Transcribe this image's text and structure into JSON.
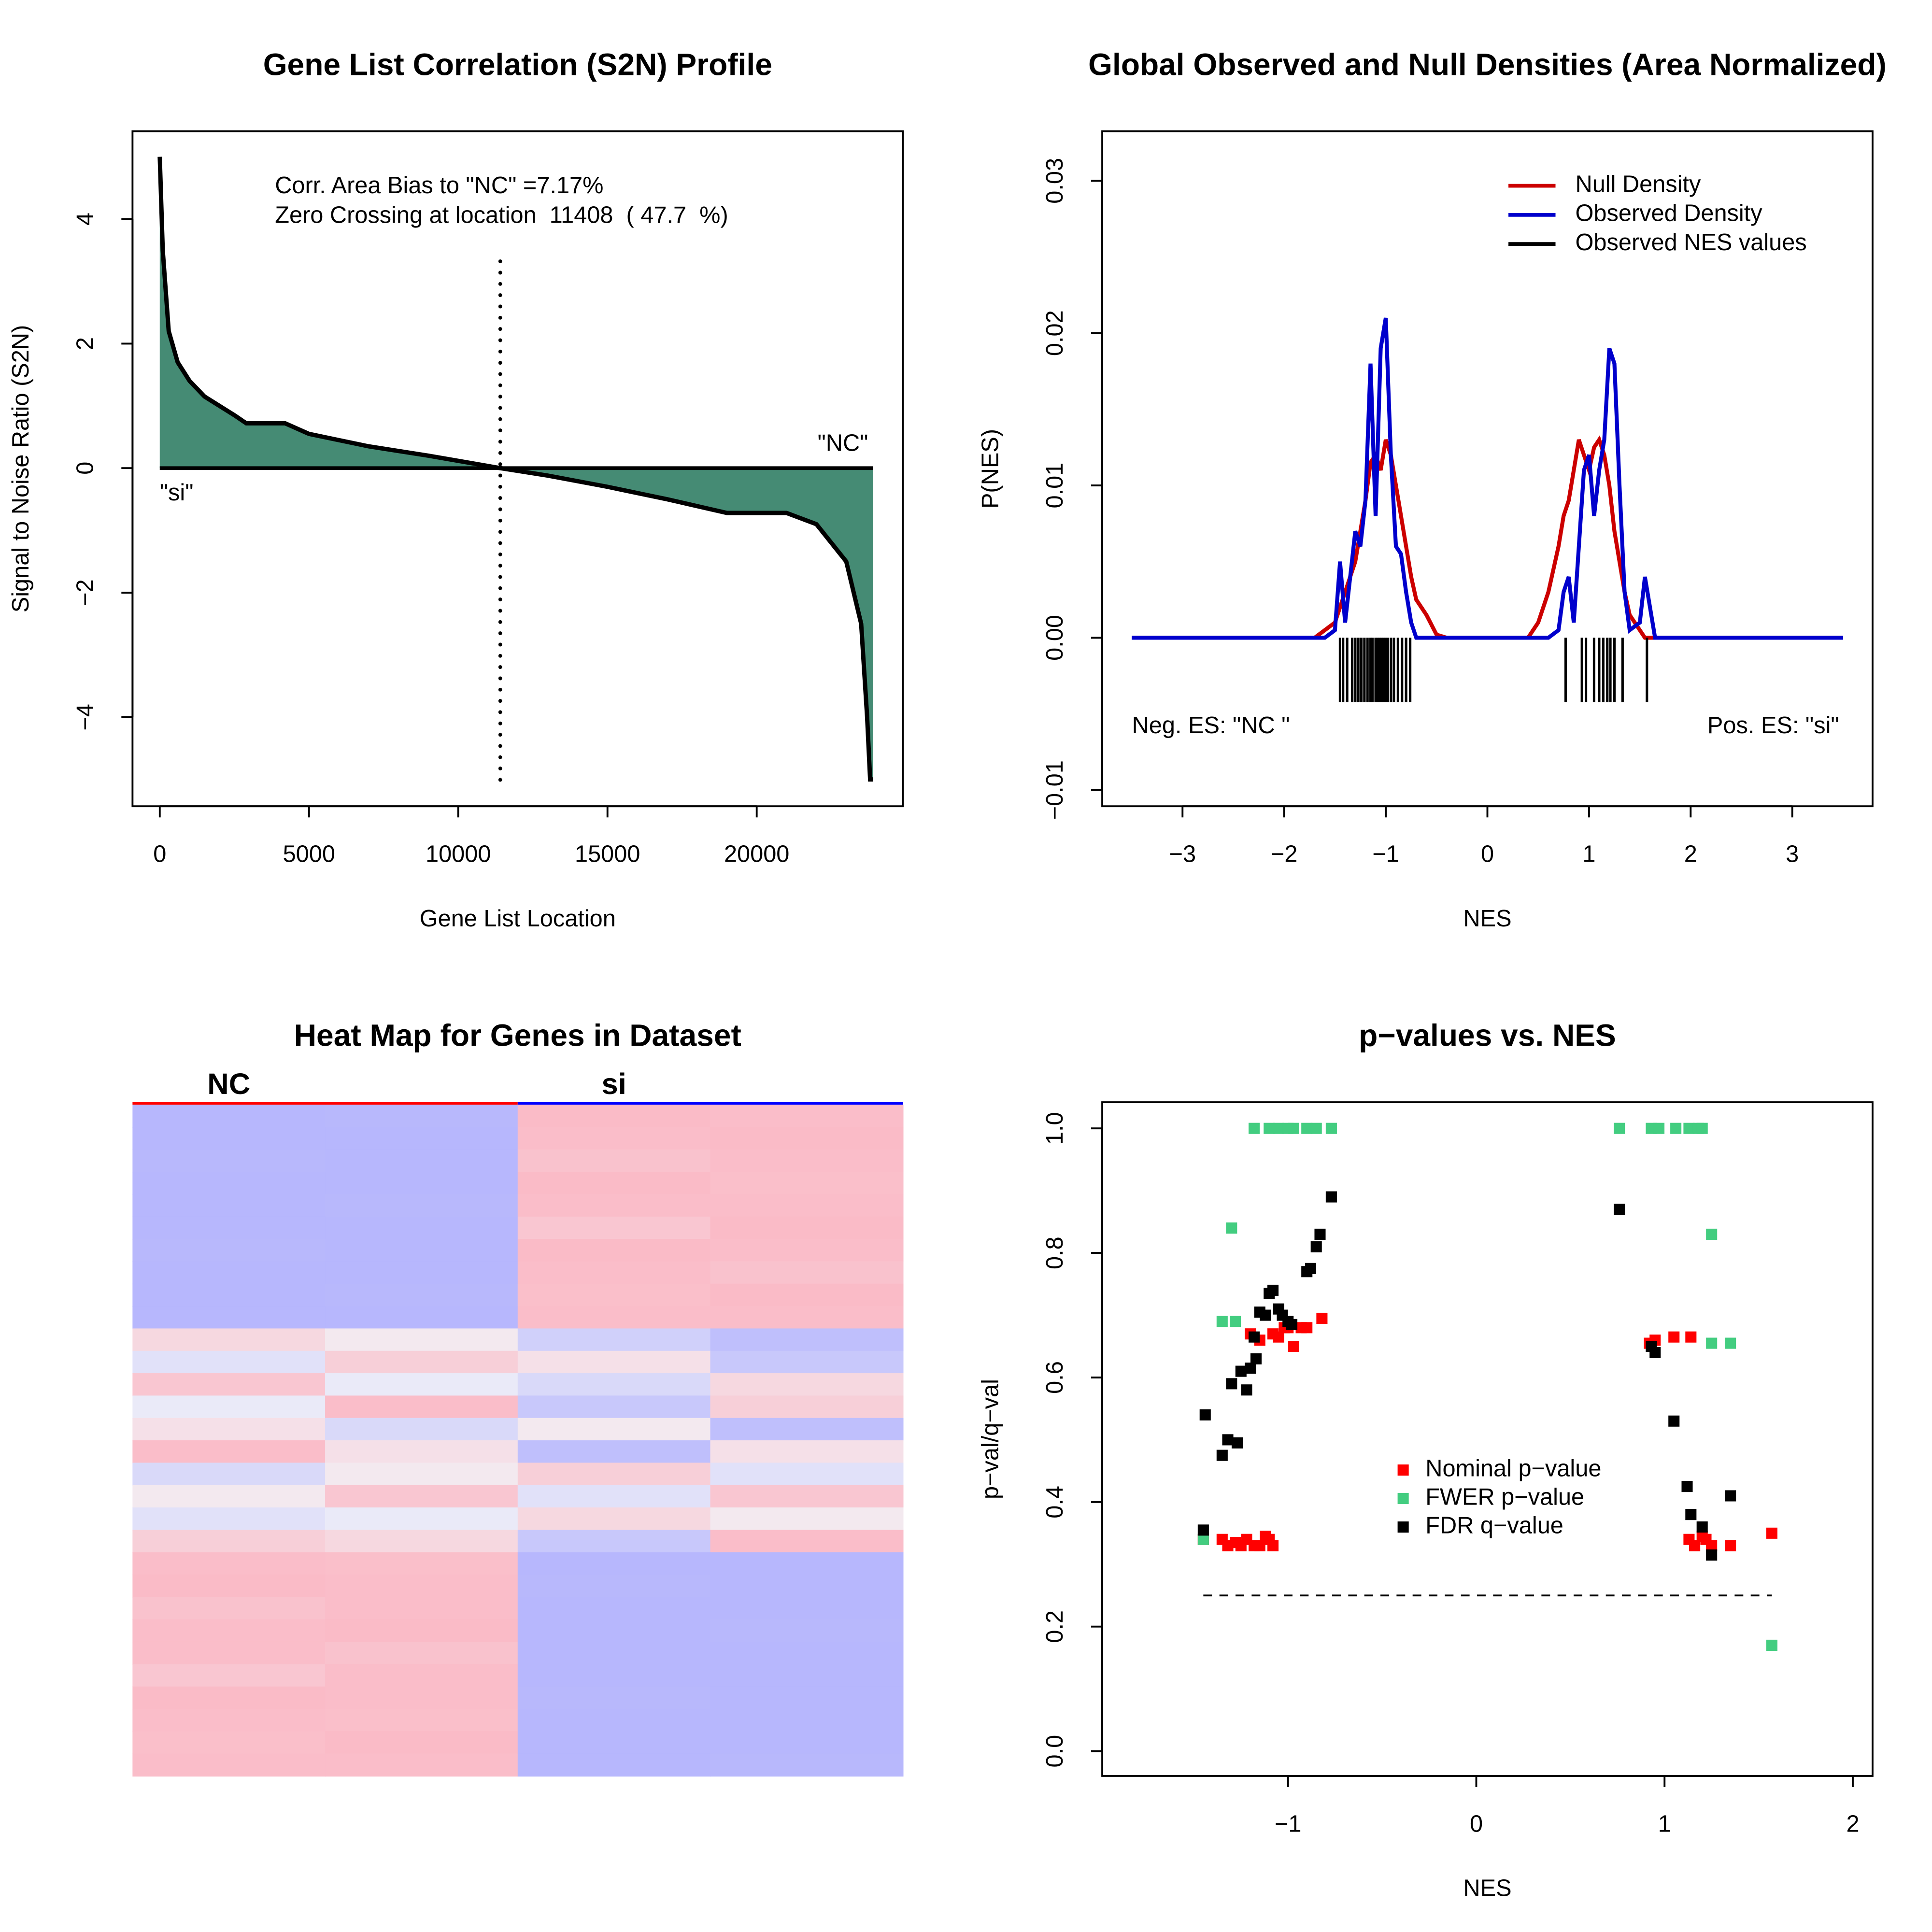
{
  "chart_data": [
    {
      "type": "area",
      "title": "Gene List Correlation (S2N) Profile",
      "xlabel": "Gene List Location",
      "ylabel": "Signal to Noise Ratio (S2N)",
      "x": [
        0,
        100,
        300,
        600,
        1000,
        1500,
        2000,
        2500,
        2900,
        4200,
        5000,
        7000,
        9000,
        11408,
        13000,
        15000,
        17000,
        19000,
        21000,
        22000,
        23000,
        23500,
        23700,
        23800,
        23900
      ],
      "values": [
        5,
        3.5,
        2.2,
        1.7,
        1.4,
        1.15,
        1,
        0.85,
        0.72,
        0.72,
        0.55,
        0.35,
        0.2,
        0,
        -0.12,
        -0.3,
        -0.5,
        -0.72,
        -0.72,
        -0.9,
        -1.5,
        -2.5,
        -4,
        -5,
        -5
      ],
      "color": "#458b74",
      "line_color": "#000000",
      "xlim": [
        -913,
        24896
      ],
      "ylim": [
        -5.43,
        5.41
      ],
      "xticks": [
        0,
        5000,
        10000,
        15000,
        20000
      ],
      "yticks": [
        {
          "value": -4,
          "label": "−4"
        },
        {
          "value": -2,
          "label": "−2"
        },
        0,
        2,
        4
      ],
      "annotations": [
        "Corr. Area Bias to \"NC\" =7.17%",
        "Zero Crossing at location  11408  ( 47.7  %)"
      ],
      "zero_crossing": 11408,
      "end_labels": {
        "left": "\"si\"",
        "right": "\"NC\""
      }
    },
    {
      "type": "line",
      "title": "Global Observed and Null Densities (Area Normalized)",
      "xlabel": "NES",
      "ylabel": "P(NES)",
      "x": [
        -3.5,
        -1.7,
        -1.6,
        -1.5,
        -1.45,
        -1.4,
        -1.35,
        -1.3,
        -1.25,
        -1.2,
        -1.15,
        -1.1,
        -1.05,
        -1.0,
        -0.95,
        -0.9,
        -0.85,
        -0.8,
        -0.75,
        -0.7,
        -0.6,
        -0.5,
        -0.4,
        0.4,
        0.5,
        0.6,
        0.7,
        0.75,
        0.8,
        0.85,
        0.9,
        0.95,
        1.0,
        1.05,
        1.1,
        1.15,
        1.2,
        1.25,
        1.3,
        1.35,
        1.4,
        1.5,
        1.55,
        1.6,
        1.65,
        1.7,
        3.5
      ],
      "series": [
        {
          "name": "Null Density",
          "color": "#cc0000",
          "values": [
            0,
            0,
            0.0005,
            0.001,
            0.002,
            0.003,
            0.004,
            0.005,
            0.007,
            0.009,
            0.0115,
            0.012,
            0.011,
            0.013,
            0.012,
            0.01,
            0.008,
            0.006,
            0.004,
            0.0025,
            0.0015,
            0.0002,
            0,
            0,
            0.001,
            0.003,
            0.006,
            0.008,
            0.009,
            0.011,
            0.013,
            0.012,
            0.011,
            0.0125,
            0.013,
            0.012,
            0.01,
            0.007,
            0.005,
            0.003,
            0.0015,
            0.0005,
            0,
            0,
            0,
            0,
            0
          ]
        },
        {
          "name": "Observed Density",
          "color": "#0000cc",
          "values": [
            0,
            0,
            0,
            0.0005,
            0.005,
            0.001,
            0.004,
            0.007,
            0.006,
            0.009,
            0.018,
            0.008,
            0.019,
            0.021,
            0.012,
            0.006,
            0.0055,
            0.003,
            0.001,
            0,
            0,
            0,
            0,
            0,
            0,
            0,
            0.0005,
            0.003,
            0.004,
            0.001,
            0.006,
            0.011,
            0.012,
            0.008,
            0.011,
            0.013,
            0.019,
            0.018,
            0.01,
            0.003,
            0.0005,
            0.001,
            0.004,
            0.002,
            0,
            0,
            0
          ]
        }
      ],
      "rug": {
        "name": "Observed NES values",
        "color": "#000000",
        "values": [
          -1.45,
          -1.42,
          -1.38,
          -1.33,
          -1.3,
          -1.27,
          -1.24,
          -1.21,
          -1.18,
          -1.15,
          -1.13,
          -1.1,
          -1.08,
          -1.06,
          -1.04,
          -1.02,
          -1.0,
          -0.98,
          -0.95,
          -0.92,
          -0.88,
          -0.84,
          -0.8,
          -0.76,
          0.77,
          0.93,
          0.97,
          1.05,
          1.1,
          1.14,
          1.18,
          1.21,
          1.25,
          1.33,
          1.57
        ]
      },
      "xlim": [
        -3.79,
        3.79
      ],
      "ylim": [
        -0.01106,
        0.03325
      ],
      "xticks": [
        {
          "value": -3,
          "label": "−3"
        },
        {
          "value": -2,
          "label": "−2"
        },
        {
          "value": -1,
          "label": "−1"
        },
        0,
        1,
        2,
        3
      ],
      "yticks": [
        {
          "value": -0.01,
          "label": "−0.01"
        },
        {
          "value": 0,
          "label": "0.00"
        },
        0.01,
        0.02,
        0.03
      ],
      "annotations": [
        "Neg. ES: \"NC \"",
        "Pos. ES: \"si\""
      ],
      "legend": "top-right"
    },
    {
      "type": "heatmap",
      "title": "Heat Map for Genes in Dataset",
      "groups": [
        {
          "name": "NC",
          "color": "#ff0000"
        },
        {
          "name": "si",
          "color": "#0000ff"
        }
      ],
      "values": [
        [
          -0.7,
          -0.68,
          0.62,
          0.6
        ],
        [
          -0.7,
          -0.7,
          0.6,
          0.62
        ],
        [
          -0.68,
          -0.7,
          0.55,
          0.6
        ],
        [
          -0.7,
          -0.7,
          0.62,
          0.58
        ],
        [
          -0.7,
          -0.68,
          0.6,
          0.6
        ],
        [
          -0.7,
          -0.7,
          0.5,
          0.62
        ],
        [
          -0.68,
          -0.7,
          0.62,
          0.6
        ],
        [
          -0.7,
          -0.7,
          0.6,
          0.55
        ],
        [
          -0.7,
          -0.68,
          0.58,
          0.62
        ],
        [
          -0.7,
          -0.7,
          0.6,
          0.6
        ],
        [
          0.3,
          0.1,
          -0.4,
          -0.6
        ],
        [
          -0.2,
          0.4,
          0.2,
          -0.5
        ],
        [
          0.5,
          -0.1,
          -0.3,
          0.3
        ],
        [
          -0.1,
          0.6,
          -0.5,
          0.4
        ],
        [
          0.2,
          -0.3,
          0.1,
          -0.6
        ],
        [
          0.6,
          0.2,
          -0.6,
          0.2
        ],
        [
          -0.3,
          0.1,
          0.4,
          -0.2
        ],
        [
          0.1,
          0.5,
          -0.2,
          0.5
        ],
        [
          -0.2,
          -0.1,
          0.3,
          0.1
        ],
        [
          0.4,
          0.3,
          -0.5,
          0.6
        ],
        [
          0.6,
          0.58,
          -0.7,
          -0.7
        ],
        [
          0.62,
          0.6,
          -0.68,
          -0.7
        ],
        [
          0.55,
          0.6,
          -0.7,
          -0.7
        ],
        [
          0.6,
          0.62,
          -0.7,
          -0.68
        ],
        [
          0.6,
          0.55,
          -0.7,
          -0.7
        ],
        [
          0.5,
          0.6,
          -0.7,
          -0.7
        ],
        [
          0.62,
          0.6,
          -0.68,
          -0.7
        ],
        [
          0.6,
          0.58,
          -0.7,
          -0.7
        ],
        [
          0.58,
          0.62,
          -0.7,
          -0.7
        ],
        [
          0.6,
          0.6,
          -0.7,
          -0.68
        ]
      ],
      "zlim": [
        -1,
        1
      ],
      "colors": [
        "#9d9dff",
        "#f2f2f7",
        "#ff9aaa"
      ]
    },
    {
      "type": "scatter",
      "title": "p−values vs. NES",
      "xlabel": "NES",
      "ylabel": "p−val/q−val",
      "series": [
        {
          "name": "Nominal p−value",
          "color": "#ff0000",
          "x": [
            -1.45,
            -1.35,
            -1.32,
            -1.28,
            -1.25,
            -1.22,
            -1.18,
            -1.15,
            -1.12,
            -1.1,
            -1.08,
            -1.2,
            -1.15,
            -1.08,
            -1.05,
            -1.02,
            -1.0,
            -0.97,
            -0.93,
            -0.9,
            -0.82,
            0.92,
            0.95,
            1.05,
            1.14,
            1.13,
            1.16,
            1.2,
            1.22,
            1.25,
            1.35,
            1.57
          ],
          "values": [
            0.34,
            0.34,
            0.33,
            0.335,
            0.33,
            0.34,
            0.33,
            0.33,
            0.345,
            0.34,
            0.33,
            0.67,
            0.66,
            0.67,
            0.665,
            0.68,
            0.68,
            0.65,
            0.68,
            0.68,
            0.695,
            0.655,
            0.66,
            0.665,
            0.665,
            0.34,
            0.33,
            0.345,
            0.34,
            0.33,
            0.33,
            0.35
          ]
        },
        {
          "name": "FWER p−value",
          "color": "#43cd80",
          "x": [
            -1.45,
            -1.18,
            -1.1,
            -1.05,
            -1.0,
            -0.97,
            -0.9,
            -0.85,
            -0.77,
            -1.3,
            -1.35,
            -1.28,
            0.76,
            0.93,
            0.97,
            1.06,
            1.13,
            1.18,
            1.2,
            1.25,
            1.25,
            1.35,
            1.57
          ],
          "values": [
            0.34,
            1,
            1,
            1,
            1,
            1,
            1,
            1,
            1,
            0.84,
            0.69,
            0.69,
            1,
            1,
            1,
            1,
            1,
            1,
            1,
            0.83,
            0.655,
            0.655,
            0.17
          ]
        },
        {
          "name": "FDR q−value",
          "color": "#000000",
          "x": [
            -1.45,
            -1.44,
            -1.35,
            -1.32,
            -1.3,
            -1.27,
            -1.25,
            -1.22,
            -1.2,
            -1.18,
            -1.15,
            -1.17,
            -1.12,
            -1.1,
            -1.08,
            -1.05,
            -1.03,
            -1.0,
            -0.98,
            -0.9,
            -0.88,
            -0.85,
            -0.83,
            -0.77,
            0.76,
            0.93,
            0.95,
            1.05,
            1.12,
            1.14,
            1.2,
            1.25,
            1.35
          ],
          "values": [
            0.355,
            0.54,
            0.475,
            0.5,
            0.59,
            0.495,
            0.61,
            0.58,
            0.615,
            0.665,
            0.705,
            0.63,
            0.7,
            0.735,
            0.74,
            0.71,
            0.7,
            0.69,
            0.685,
            0.77,
            0.775,
            0.81,
            0.83,
            0.89,
            0.87,
            0.65,
            0.64,
            0.53,
            0.425,
            0.38,
            0.36,
            0.315,
            0.41
          ]
        }
      ],
      "xlim": [
        -1.987,
        2.105
      ],
      "ylim": [
        -0.0398,
        1.042
      ],
      "xticks": [
        {
          "value": -1,
          "label": "−1"
        },
        0,
        1,
        2
      ],
      "yticks": [
        {
          "value": 0,
          "label": "0.0"
        },
        0.2,
        0.4,
        0.6,
        0.8,
        {
          "value": 1,
          "label": "1.0"
        }
      ],
      "hline": 0.25,
      "legend": "center"
    }
  ]
}
